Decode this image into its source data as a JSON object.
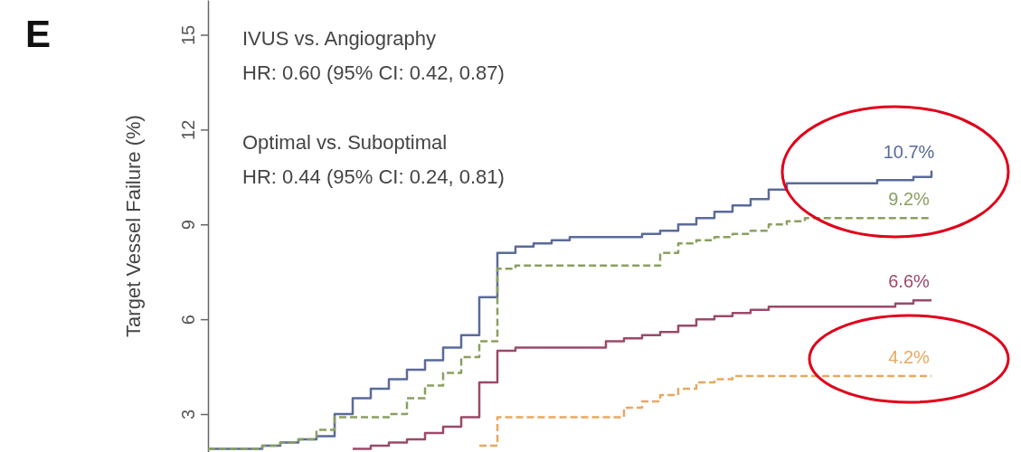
{
  "chart_data": {
    "type": "step",
    "ylabel": "Target Vessel Failure (%)",
    "annotations": [
      "E",
      "IVUS vs. Angiography",
      "HR: 0.60 (95% CI: 0.42, 0.87)",
      "Optimal vs. Suboptimal",
      "HR: 0.44 (95% CI: 0.24, 0.81)"
    ],
    "categories": [
      null,
      null,
      null,
      null,
      null,
      null,
      null,
      null,
      null,
      null,
      null,
      null,
      null,
      null,
      null,
      null,
      null,
      null,
      null,
      null,
      null,
      null,
      null,
      null,
      null,
      null,
      null,
      null,
      null,
      null,
      null,
      null,
      null,
      null,
      null,
      null,
      null,
      null,
      null,
      null,
      null
    ],
    "ylim": [
      1.8,
      16.1
    ],
    "yticks": [
      3,
      6,
      9,
      12,
      15
    ],
    "tick_labels": "y",
    "grid": false,
    "series": [
      {
        "color": "#5a6a9a",
        "line_style": "solid",
        "values": [
          1.9,
          1.9,
          1.9,
          2.0,
          2.1,
          2.2,
          2.3,
          3.0,
          3.5,
          3.8,
          4.1,
          4.4,
          4.7,
          5.1,
          5.5,
          6.7,
          8.1,
          8.3,
          8.4,
          8.5,
          8.6,
          8.6,
          8.6,
          8.6,
          8.7,
          8.8,
          9.0,
          9.2,
          9.4,
          9.6,
          9.8,
          10.1,
          10.3,
          10.3,
          10.3,
          10.3,
          10.3,
          10.4,
          10.4,
          10.5,
          10.7
        ],
        "value_labels": [
          null,
          null,
          null,
          null,
          null,
          null,
          null,
          null,
          null,
          null,
          null,
          null,
          null,
          null,
          null,
          null,
          null,
          null,
          null,
          null,
          null,
          null,
          null,
          null,
          null,
          null,
          null,
          null,
          null,
          null,
          null,
          null,
          null,
          null,
          null,
          null,
          null,
          null,
          null,
          null,
          "10.7%"
        ]
      },
      {
        "color": "#8aa060",
        "line_style": "dashed",
        "values": [
          1.9,
          1.9,
          1.9,
          2.0,
          2.1,
          2.2,
          2.5,
          2.9,
          2.9,
          2.9,
          3.0,
          3.5,
          3.9,
          4.3,
          4.8,
          5.3,
          7.6,
          7.7,
          7.7,
          7.7,
          7.7,
          7.7,
          7.7,
          7.7,
          7.7,
          8.1,
          8.4,
          8.5,
          8.6,
          8.7,
          8.8,
          9.0,
          9.1,
          9.2,
          9.2,
          9.2,
          9.2,
          9.2,
          9.2,
          9.2,
          9.2
        ],
        "value_labels": [
          null,
          null,
          null,
          null,
          null,
          null,
          null,
          null,
          null,
          null,
          null,
          null,
          null,
          null,
          null,
          null,
          null,
          null,
          null,
          null,
          null,
          null,
          null,
          null,
          null,
          null,
          null,
          null,
          null,
          null,
          null,
          null,
          null,
          null,
          null,
          null,
          null,
          null,
          null,
          null,
          "9.2%"
        ]
      },
      {
        "color": "#9a4a6a",
        "line_style": "solid",
        "values": [
          null,
          null,
          null,
          null,
          null,
          null,
          null,
          null,
          1.9,
          2.0,
          2.1,
          2.2,
          2.4,
          2.6,
          2.9,
          4.0,
          5.0,
          5.1,
          5.1,
          5.1,
          5.1,
          5.1,
          5.3,
          5.4,
          5.5,
          5.6,
          5.8,
          6.0,
          6.1,
          6.2,
          6.3,
          6.4,
          6.4,
          6.4,
          6.4,
          6.4,
          6.4,
          6.4,
          6.5,
          6.6,
          6.6
        ],
        "value_labels": [
          null,
          null,
          null,
          null,
          null,
          null,
          null,
          null,
          null,
          null,
          null,
          null,
          null,
          null,
          null,
          null,
          null,
          null,
          null,
          null,
          null,
          null,
          null,
          null,
          null,
          null,
          null,
          null,
          null,
          null,
          null,
          null,
          null,
          null,
          null,
          null,
          null,
          null,
          null,
          null,
          "6.6%"
        ]
      },
      {
        "color": "#e8a860",
        "line_style": "dashed",
        "values": [
          null,
          null,
          null,
          null,
          null,
          null,
          null,
          null,
          null,
          null,
          null,
          null,
          null,
          null,
          null,
          2.0,
          2.9,
          2.9,
          2.9,
          2.9,
          2.9,
          2.9,
          2.9,
          3.2,
          3.4,
          3.6,
          3.8,
          4.0,
          4.1,
          4.2,
          4.2,
          4.2,
          4.2,
          4.2,
          4.2,
          4.2,
          4.2,
          4.2,
          4.2,
          4.2,
          4.2
        ],
        "value_labels": [
          null,
          null,
          null,
          null,
          null,
          null,
          null,
          null,
          null,
          null,
          null,
          null,
          null,
          null,
          null,
          null,
          null,
          null,
          null,
          null,
          null,
          null,
          null,
          null,
          null,
          null,
          null,
          null,
          null,
          null,
          null,
          null,
          null,
          null,
          null,
          null,
          null,
          null,
          null,
          null,
          "4.2%"
        ]
      }
    ]
  }
}
